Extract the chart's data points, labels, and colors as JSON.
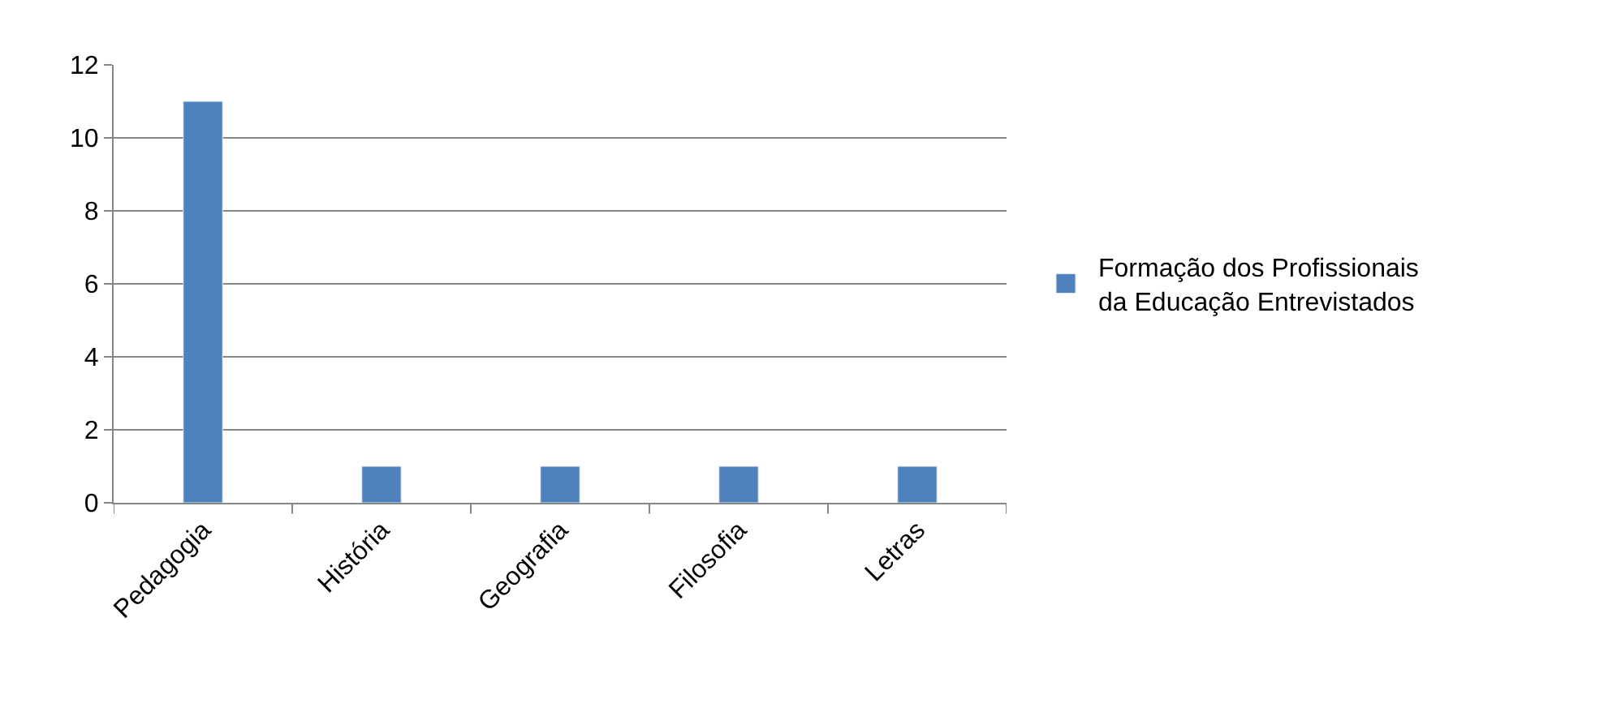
{
  "chart_data": {
    "type": "bar",
    "categories": [
      "Pedagogia",
      "História",
      "Geografia",
      "Filosofia",
      "Letras"
    ],
    "series": [
      {
        "name": "Formação dos Profissionais da Educação Entrevistados",
        "color": "#4f81bd",
        "values": [
          11,
          1,
          1,
          1,
          1
        ]
      }
    ],
    "ylim": [
      0,
      12
    ],
    "yticks": [
      0,
      2,
      4,
      6,
      8,
      10,
      12
    ],
    "grid": "y",
    "legend": "right"
  }
}
